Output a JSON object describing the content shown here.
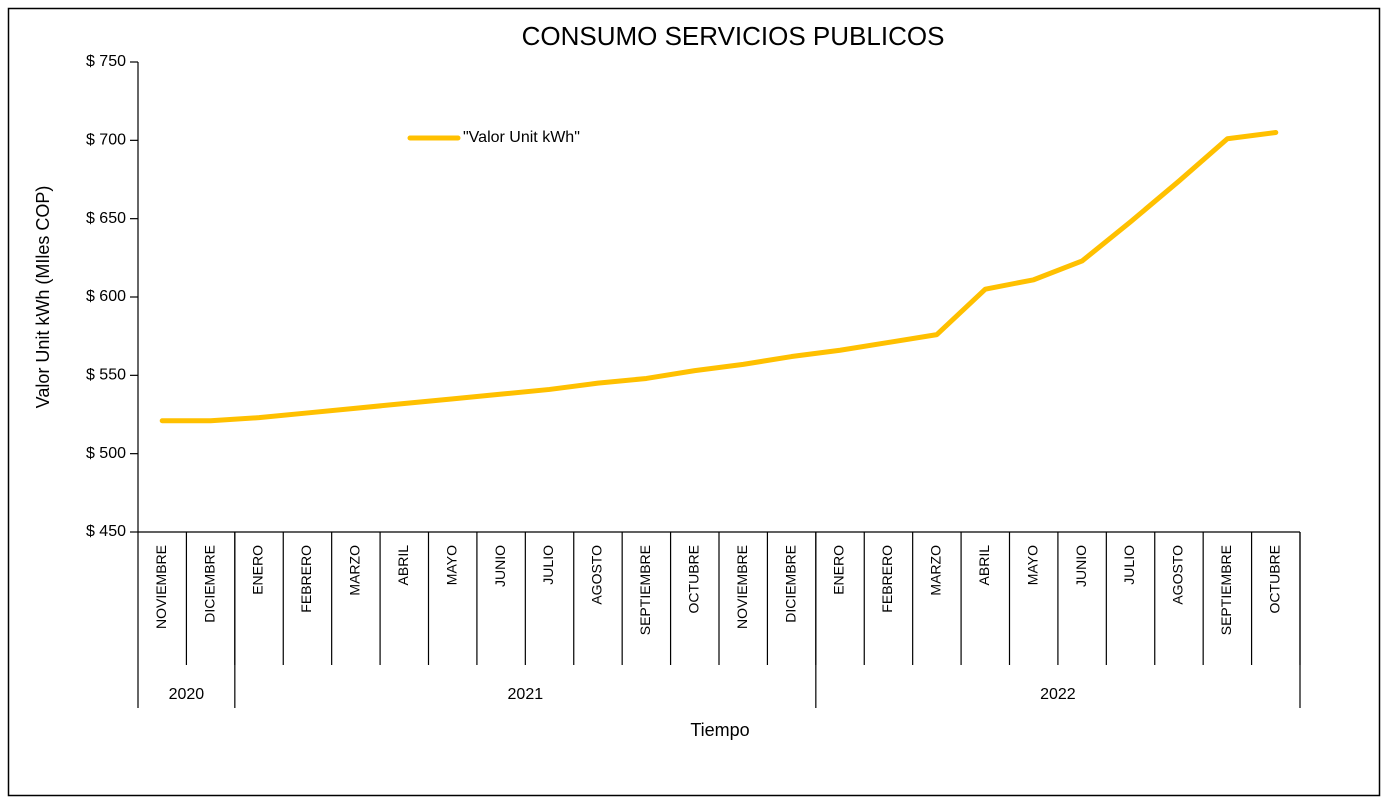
{
  "chart_data": {
    "type": "line",
    "title": "CONSUMO SERVICIOS PUBLICOS",
    "y_label": "Valor Unit kWh (MIles COP)",
    "x_label": "Tiempo",
    "categories": [
      "NOVIEMBRE",
      "DICIEMBRE",
      "ENERO",
      "FEBRERO",
      "MARZO",
      "ABRIL",
      "MAYO",
      "JUNIO",
      "JULIO",
      "AGOSTO",
      "SEPTIEMBRE",
      "OCTUBRE",
      "NOVIEMBRE",
      "DICIEMBRE",
      "ENERO",
      "FEBRERO",
      "MARZO",
      "ABRIL",
      "MAYO",
      "JUNIO",
      "JULIO",
      "AGOSTO",
      "SEPTIEMBRE",
      "OCTUBRE"
    ],
    "category_groups": [
      {
        "name": "2020",
        "span": 2
      },
      {
        "name": "2021",
        "span": 12
      },
      {
        "name": "2022",
        "span": 10
      }
    ],
    "series": [
      {
        "name": "\"Valor Unit kWh\"",
        "color": "#FFC000",
        "values": [
          521,
          521,
          523,
          526,
          529,
          532,
          535,
          538,
          541,
          545,
          548,
          553,
          557,
          562,
          566,
          571,
          576,
          605,
          611,
          623,
          648,
          674,
          701,
          705
        ]
      }
    ],
    "ylim": [
      450,
      750
    ],
    "yticks": [
      {
        "value": 450,
        "label": "$ 450"
      },
      {
        "value": 500,
        "label": "$ 500"
      },
      {
        "value": 550,
        "label": "$ 550"
      },
      {
        "value": 600,
        "label": "$ 600"
      },
      {
        "value": 650,
        "label": "$ 650"
      },
      {
        "value": 700,
        "label": "$ 700"
      },
      {
        "value": 750,
        "label": "$ 750"
      }
    ],
    "grid": false,
    "legend": "top-left"
  }
}
